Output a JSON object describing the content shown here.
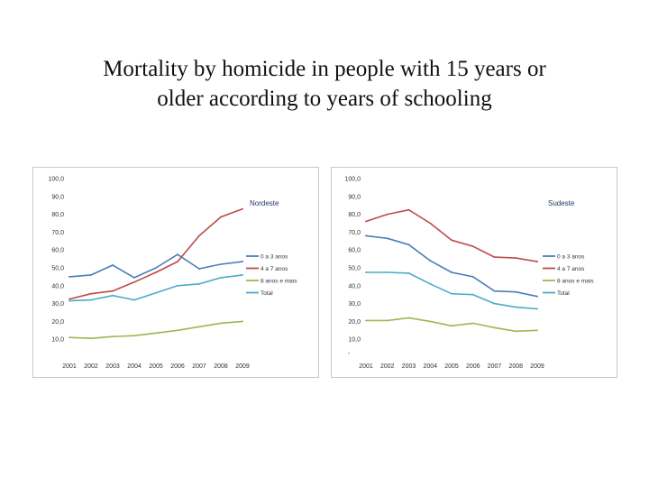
{
  "slide": {
    "title_line1": "Mortality by homicide in people with 15 years or",
    "title_line2": "older according to years of schooling"
  },
  "colors": {
    "series": [
      "#4a7ebb",
      "#be4b48",
      "#98b954",
      "#4bacc6"
    ]
  },
  "chart_data": [
    {
      "type": "line",
      "region": "Nordeste",
      "x": [
        "2001",
        "2002",
        "2003",
        "2004",
        "2005",
        "2006",
        "2007",
        "2008",
        "2009"
      ],
      "ylim": [
        0,
        100
      ],
      "yticks": [
        "10,0",
        "20,0",
        "30,0",
        "40,0",
        "50,0",
        "60,0",
        "70,0",
        "80,0",
        "90,0",
        "100,0"
      ],
      "ytick_values": [
        10,
        20,
        30,
        40,
        50,
        60,
        70,
        80,
        90,
        100
      ],
      "legend_position": "right",
      "series": [
        {
          "name": "0 a 3 anos",
          "values": [
            45.0,
            46.0,
            51.5,
            44.5,
            50.0,
            57.5,
            49.5,
            52.0,
            53.5
          ]
        },
        {
          "name": "4 a 7 anos",
          "values": [
            32.5,
            35.5,
            37.0,
            42.0,
            47.5,
            53.5,
            68.0,
            78.5,
            83.0
          ]
        },
        {
          "name": "8 anos e mais",
          "values": [
            11.0,
            10.5,
            11.5,
            12.0,
            13.5,
            15.0,
            17.0,
            19.0,
            20.0
          ]
        },
        {
          "name": "Total",
          "values": [
            31.5,
            32.0,
            34.5,
            32.0,
            36.0,
            40.0,
            41.0,
            44.5,
            46.0
          ]
        }
      ]
    },
    {
      "type": "line",
      "region": "Sudeste",
      "x": [
        "2001",
        "2002",
        "2003",
        "2004",
        "2005",
        "2006",
        "2007",
        "2008",
        "2009"
      ],
      "ylim": [
        0,
        100
      ],
      "yticks": [
        "10,0",
        "20,0",
        "30,0",
        "40,0",
        "50,0",
        "60,0",
        "70,0",
        "80,0",
        "90,0",
        "100,0"
      ],
      "ytick_values": [
        10,
        20,
        30,
        40,
        50,
        60,
        70,
        80,
        90,
        100
      ],
      "y_origin_label": "-",
      "legend_position": "right",
      "series": [
        {
          "name": "0 a 3 anos",
          "values": [
            68.0,
            66.5,
            63.0,
            54.0,
            47.5,
            45.0,
            37.0,
            36.5,
            34.0
          ]
        },
        {
          "name": "4 a 7 anos",
          "values": [
            76.0,
            80.0,
            82.5,
            75.0,
            65.5,
            62.0,
            56.0,
            55.5,
            53.5
          ]
        },
        {
          "name": "8 anos e mais",
          "values": [
            20.5,
            20.5,
            22.0,
            20.0,
            17.5,
            19.0,
            16.5,
            14.5,
            15.0
          ]
        },
        {
          "name": "Total",
          "values": [
            47.5,
            47.5,
            47.0,
            41.0,
            35.5,
            35.0,
            30.0,
            28.0,
            27.0
          ]
        }
      ]
    }
  ]
}
